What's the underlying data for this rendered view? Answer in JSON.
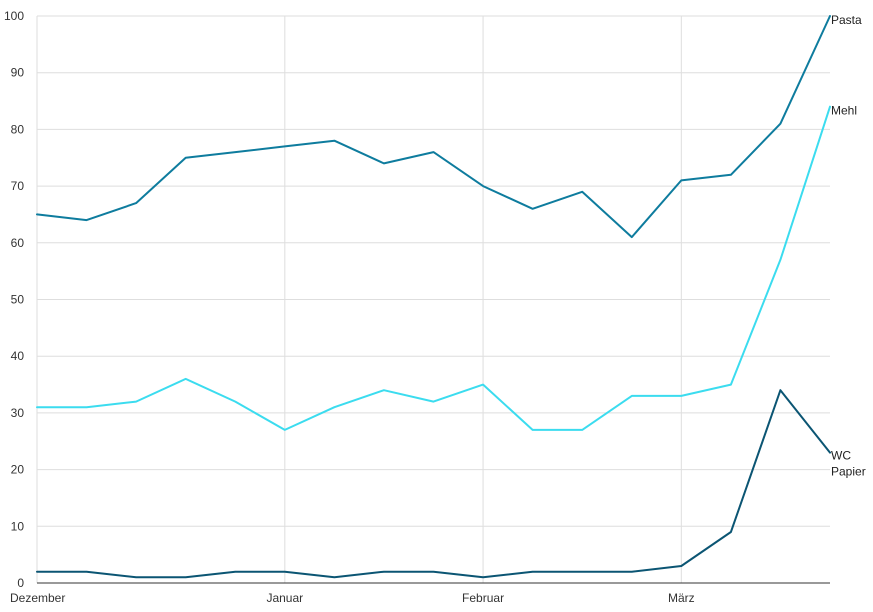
{
  "chart_data": {
    "type": "line",
    "title": "",
    "xlabel": "",
    "ylabel": "",
    "ylim": [
      0,
      100
    ],
    "yticks": [
      0,
      10,
      20,
      30,
      40,
      50,
      60,
      70,
      80,
      90,
      100
    ],
    "x": [
      0,
      1,
      2,
      3,
      4,
      5,
      6,
      7,
      8,
      9,
      10,
      11,
      12,
      13,
      14,
      15,
      16
    ],
    "xticks": [
      {
        "x": 0,
        "label": "Dezember"
      },
      {
        "x": 5,
        "label": "Januar"
      },
      {
        "x": 9,
        "label": "Februar"
      },
      {
        "x": 13,
        "label": "März"
      }
    ],
    "grid": true,
    "series": [
      {
        "name": "Pasta",
        "color": "#0e7c9e",
        "values": [
          65,
          64,
          67,
          75,
          76,
          77,
          78,
          74,
          76,
          70,
          66,
          69,
          61,
          71,
          72,
          81,
          100
        ]
      },
      {
        "name": "Mehl",
        "color": "#3bdcef",
        "values": [
          31,
          31,
          32,
          36,
          32,
          27,
          31,
          34,
          32,
          35,
          27,
          27,
          33,
          33,
          35,
          57,
          84
        ]
      },
      {
        "name": "WC Papier",
        "color": "#0b5573",
        "values": [
          2,
          2,
          1,
          1,
          2,
          2,
          1,
          2,
          2,
          1,
          2,
          2,
          2,
          3,
          9,
          34,
          23
        ]
      }
    ]
  }
}
